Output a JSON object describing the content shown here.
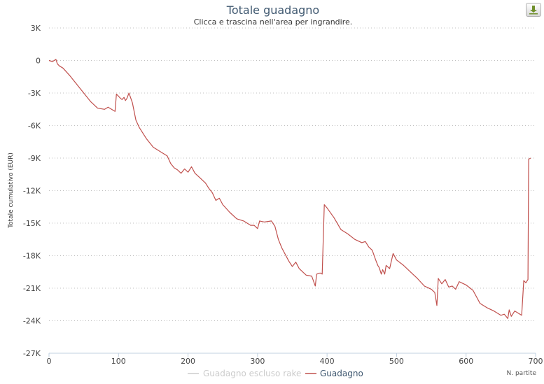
{
  "chart_data": {
    "type": "line",
    "title": "Totale guadagno",
    "subtitle": "Clicca e trascina nell'area per ingrandire.",
    "ylabel": "Totale cumulativo (EUR)",
    "xlabel": "N. partite",
    "xlim": [
      0,
      700
    ],
    "ylim": [
      -27000,
      3000
    ],
    "x_ticks": [
      {
        "value": 0,
        "label": "0"
      },
      {
        "value": 100,
        "label": "100"
      },
      {
        "value": 200,
        "label": "200"
      },
      {
        "value": 300,
        "label": "300"
      },
      {
        "value": 400,
        "label": "400"
      },
      {
        "value": 500,
        "label": "500"
      },
      {
        "value": 600,
        "label": "600"
      },
      {
        "value": 700,
        "label": "700"
      }
    ],
    "y_ticks": [
      {
        "value": 3000,
        "label": "3K"
      },
      {
        "value": 0,
        "label": "0"
      },
      {
        "value": -3000,
        "label": "-3K"
      },
      {
        "value": -6000,
        "label": "-6K"
      },
      {
        "value": -9000,
        "label": "-9K"
      },
      {
        "value": -12000,
        "label": "-12K"
      },
      {
        "value": -15000,
        "label": "-15K"
      },
      {
        "value": -18000,
        "label": "-18K"
      },
      {
        "value": -21000,
        "label": "-21K"
      },
      {
        "value": -24000,
        "label": "-24K"
      },
      {
        "value": -27000,
        "label": "-27K"
      }
    ],
    "grid": true,
    "legend_position": "bottom-center",
    "series": [
      {
        "name": "Guadagno escluso rake",
        "color": "#cccccc",
        "visible": false,
        "values": []
      },
      {
        "name": "Guadagno",
        "color": "#c0504d",
        "visible": true,
        "values": [
          [
            0,
            0
          ],
          [
            5,
            -100
          ],
          [
            10,
            100
          ],
          [
            12,
            -300
          ],
          [
            15,
            -500
          ],
          [
            20,
            -700
          ],
          [
            30,
            -1400
          ],
          [
            40,
            -2200
          ],
          [
            50,
            -3000
          ],
          [
            60,
            -3800
          ],
          [
            70,
            -4400
          ],
          [
            80,
            -4500
          ],
          [
            85,
            -4300
          ],
          [
            95,
            -4700
          ],
          [
            97,
            -3100
          ],
          [
            100,
            -3300
          ],
          [
            103,
            -3500
          ],
          [
            105,
            -3600
          ],
          [
            108,
            -3400
          ],
          [
            110,
            -3700
          ],
          [
            112,
            -3500
          ],
          [
            115,
            -3000
          ],
          [
            120,
            -3900
          ],
          [
            125,
            -5500
          ],
          [
            130,
            -6200
          ],
          [
            140,
            -7200
          ],
          [
            150,
            -8000
          ],
          [
            160,
            -8400
          ],
          [
            170,
            -8800
          ],
          [
            175,
            -9500
          ],
          [
            180,
            -9900
          ],
          [
            185,
            -10100
          ],
          [
            190,
            -10400
          ],
          [
            195,
            -10000
          ],
          [
            200,
            -10300
          ],
          [
            205,
            -9800
          ],
          [
            210,
            -10400
          ],
          [
            215,
            -10700
          ],
          [
            225,
            -11300
          ],
          [
            230,
            -11800
          ],
          [
            235,
            -12200
          ],
          [
            240,
            -12900
          ],
          [
            245,
            -12700
          ],
          [
            250,
            -13300
          ],
          [
            260,
            -14000
          ],
          [
            270,
            -14600
          ],
          [
            280,
            -14800
          ],
          [
            290,
            -15200
          ],
          [
            295,
            -15200
          ],
          [
            300,
            -15500
          ],
          [
            303,
            -14800
          ],
          [
            310,
            -14900
          ],
          [
            320,
            -14800
          ],
          [
            325,
            -15300
          ],
          [
            330,
            -16500
          ],
          [
            335,
            -17300
          ],
          [
            345,
            -18500
          ],
          [
            350,
            -19000
          ],
          [
            355,
            -18600
          ],
          [
            360,
            -19200
          ],
          [
            370,
            -19800
          ],
          [
            378,
            -19900
          ],
          [
            383,
            -20800
          ],
          [
            385,
            -19700
          ],
          [
            390,
            -19600
          ],
          [
            393,
            -19700
          ],
          [
            396,
            -13300
          ],
          [
            400,
            -13600
          ],
          [
            410,
            -14500
          ],
          [
            420,
            -15600
          ],
          [
            430,
            -16000
          ],
          [
            440,
            -16500
          ],
          [
            450,
            -16800
          ],
          [
            455,
            -16700
          ],
          [
            460,
            -17200
          ],
          [
            465,
            -17500
          ],
          [
            470,
            -18400
          ],
          [
            473,
            -18900
          ],
          [
            475,
            -19100
          ],
          [
            478,
            -19700
          ],
          [
            480,
            -19300
          ],
          [
            483,
            -19700
          ],
          [
            485,
            -18900
          ],
          [
            490,
            -19200
          ],
          [
            495,
            -17800
          ],
          [
            500,
            -18400
          ],
          [
            510,
            -18900
          ],
          [
            520,
            -19500
          ],
          [
            530,
            -20100
          ],
          [
            540,
            -20800
          ],
          [
            550,
            -21100
          ],
          [
            555,
            -21400
          ],
          [
            558,
            -22600
          ],
          [
            560,
            -20100
          ],
          [
            565,
            -20600
          ],
          [
            570,
            -20200
          ],
          [
            575,
            -20900
          ],
          [
            580,
            -20800
          ],
          [
            585,
            -21100
          ],
          [
            590,
            -20400
          ],
          [
            600,
            -20700
          ],
          [
            610,
            -21200
          ],
          [
            620,
            -22400
          ],
          [
            630,
            -22800
          ],
          [
            640,
            -23100
          ],
          [
            650,
            -23500
          ],
          [
            655,
            -23400
          ],
          [
            660,
            -23800
          ],
          [
            662,
            -23000
          ],
          [
            665,
            -23600
          ],
          [
            670,
            -23100
          ],
          [
            675,
            -23300
          ],
          [
            680,
            -23500
          ],
          [
            683,
            -20300
          ],
          [
            686,
            -20500
          ],
          [
            689,
            -20200
          ],
          [
            690,
            -9100
          ],
          [
            693,
            -9000
          ]
        ]
      }
    ]
  },
  "toolbar": {
    "export_icon": "download-icon"
  }
}
